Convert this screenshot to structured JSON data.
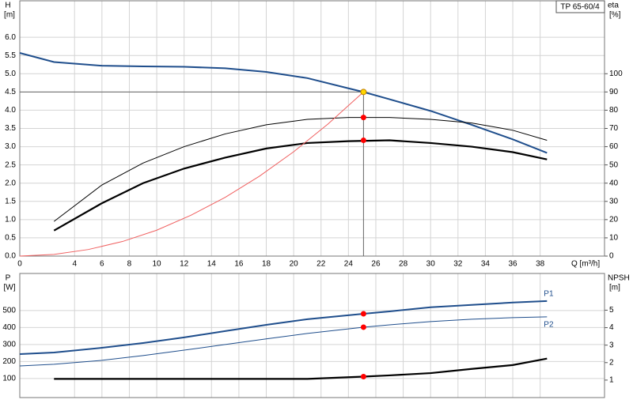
{
  "chart_data": [
    {
      "type": "line",
      "legend_box": "TP 65-60/4",
      "y_label": "H",
      "y_unit": "[m]",
      "y2_label": "eta",
      "y2_unit": "[%]",
      "x_label": "Q [m³/h]",
      "xlim": [
        0,
        42.7
      ],
      "xticks": [
        0,
        4,
        6,
        8,
        10,
        12,
        14,
        16,
        18,
        20,
        22,
        24,
        26,
        28,
        30,
        32,
        34,
        36,
        38
      ],
      "ylim": [
        0,
        7
      ],
      "yticks": [
        {
          "value": 0,
          "label": "0.0"
        },
        0.5,
        {
          "value": 1,
          "label": "1.0"
        },
        1.5,
        {
          "value": 2,
          "label": "2.0"
        },
        2.5,
        {
          "value": 3,
          "label": "3.0"
        },
        3.5,
        {
          "value": 4,
          "label": "4.0"
        },
        4.5,
        {
          "value": 5,
          "label": "5.0"
        },
        5.5,
        {
          "value": 6,
          "label": "6.0"
        }
      ],
      "y2lim": [
        0,
        140
      ],
      "y2ticks": [
        0,
        10,
        20,
        30,
        40,
        50,
        60,
        70,
        80,
        90,
        100
      ],
      "grid": true,
      "duty_lines": true,
      "series": [
        {
          "color": "#1f4e8c",
          "width": 2,
          "x": [
            0,
            2.5,
            6,
            9,
            12,
            15,
            18,
            21,
            24,
            25.1,
            27,
            30,
            33,
            36,
            38.5
          ],
          "values": [
            5.57,
            5.32,
            5.22,
            5.2,
            5.19,
            5.15,
            5.05,
            4.88,
            4.6,
            4.5,
            4.3,
            3.98,
            3.6,
            3.2,
            2.83
          ]
        },
        {
          "color": "#000000",
          "width": 1,
          "axis": "y2",
          "x": [
            2.5,
            6,
            9,
            12,
            15,
            18,
            21,
            24,
            27,
            30,
            33,
            36,
            38.5
          ],
          "values": [
            19,
            39,
            51,
            60,
            67,
            72,
            75,
            76,
            76,
            75,
            73,
            69,
            63.5
          ]
        },
        {
          "color": "#000000",
          "width": 2.2,
          "axis": "y2",
          "x": [
            2.5,
            6,
            9,
            12,
            15,
            18,
            21,
            24,
            27,
            30,
            33,
            36,
            38.5
          ],
          "values": [
            14,
            29,
            40,
            48,
            54,
            59,
            62,
            63,
            63.5,
            62,
            60,
            57,
            53
          ]
        },
        {
          "color": "#f06060",
          "width": 1,
          "x": [
            0,
            2.5,
            5,
            7.5,
            10,
            12.5,
            15,
            17.5,
            20,
            22.5,
            25.1
          ],
          "values": [
            0,
            0.045,
            0.18,
            0.4,
            0.71,
            1.12,
            1.61,
            2.19,
            2.86,
            3.62,
            4.5
          ]
        }
      ],
      "markers": [
        {
          "x": 25.1,
          "value": 4.5,
          "color": "#ffd700"
        },
        {
          "x": 25.1,
          "value": 76,
          "axis": "y2",
          "color": "#ff0000"
        },
        {
          "x": 25.1,
          "value": 63.5,
          "axis": "y2",
          "color": "#ff0000"
        }
      ]
    },
    {
      "type": "line",
      "y_label": "P",
      "y_unit": "[W]",
      "y2_label": "NPSH",
      "y2_unit": "[m]",
      "xlim": [
        0,
        42.7
      ],
      "xticks": [
        0,
        4,
        6,
        8,
        10,
        12,
        14,
        16,
        18,
        20,
        22,
        24,
        26,
        28,
        30,
        32,
        34,
        36,
        38
      ],
      "xtick_labels": false,
      "ylim": [
        -12,
        718
      ],
      "yticks": [
        100,
        200,
        300,
        400,
        500
      ],
      "y2lim": [
        0,
        7.1
      ],
      "y2ticks": [
        1,
        2,
        3,
        4,
        5
      ],
      "grid": true,
      "series": [
        {
          "name": "P1",
          "color": "#1f4e8c",
          "width": 2,
          "label_pos": "above",
          "x": [
            0,
            2.5,
            6,
            9,
            12,
            15,
            18,
            21,
            25.1,
            27,
            30,
            33,
            36,
            38.5
          ],
          "values": [
            244,
            253,
            281,
            309,
            342,
            379,
            416,
            449,
            481,
            495,
            519,
            533,
            547,
            556
          ]
        },
        {
          "name": "P2",
          "color": "#1f4e8c",
          "width": 1,
          "label_pos": "below",
          "x": [
            0,
            2.5,
            6,
            9,
            12,
            15,
            18,
            21,
            25.1,
            27,
            30,
            33,
            36,
            38.5
          ],
          "values": [
            174,
            184,
            207,
            235,
            267,
            300,
            333,
            365,
            402,
            416,
            435,
            449,
            458,
            463
          ]
        },
        {
          "color": "#000000",
          "width": 2.2,
          "axis": "y2",
          "x": [
            2.5,
            6,
            9,
            12,
            15,
            18,
            21,
            25.1,
            27,
            30,
            33,
            36,
            38.5
          ],
          "values": [
            1.07,
            1.07,
            1.07,
            1.07,
            1.07,
            1.07,
            1.07,
            1.2,
            1.27,
            1.4,
            1.64,
            1.86,
            2.23
          ]
        }
      ],
      "markers": [
        {
          "x": 25.1,
          "value": 481,
          "color": "#ff0000"
        },
        {
          "x": 25.1,
          "value": 402,
          "color": "#ff0000"
        },
        {
          "x": 25.1,
          "value": 1.2,
          "axis": "y2",
          "color": "#ff0000"
        }
      ]
    }
  ]
}
